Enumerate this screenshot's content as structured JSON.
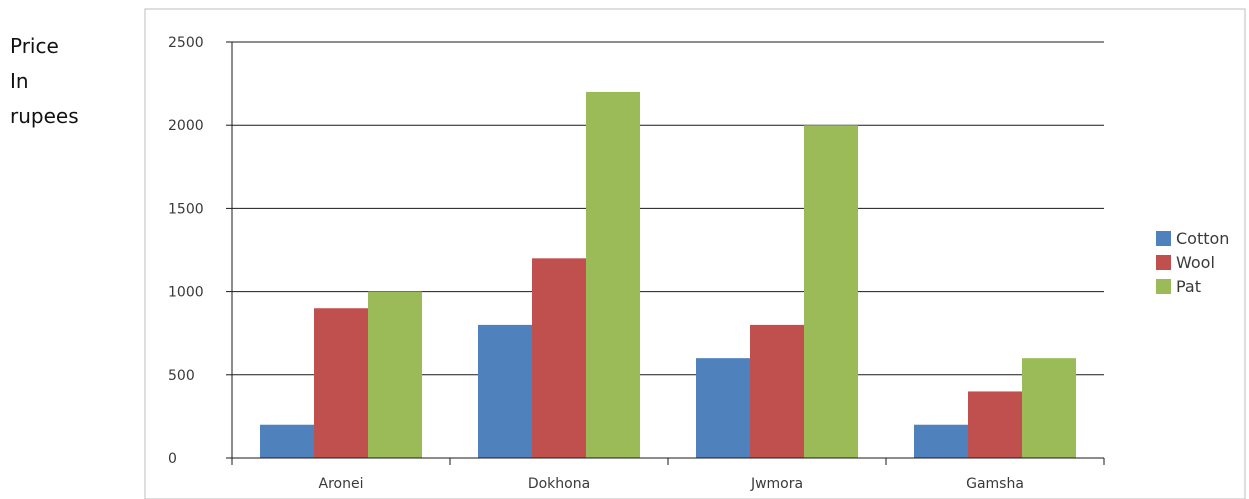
{
  "y_axis_label": {
    "line1": "Price",
    "line2": "In",
    "line3": "rupees"
  },
  "chart_data": {
    "type": "bar",
    "title": "",
    "xlabel": "",
    "ylabel": "Price In rupees",
    "categories": [
      "Aronei",
      "Dokhona",
      "Jwmora",
      "Gamsha"
    ],
    "series": [
      {
        "name": "Cotton",
        "color": "#4f81bd",
        "values": [
          200,
          800,
          600,
          200
        ]
      },
      {
        "name": "Wool",
        "color": "#c0504d",
        "values": [
          900,
          1200,
          800,
          400
        ]
      },
      {
        "name": "Pat",
        "color": "#9bbb59",
        "values": [
          1000,
          2200,
          2000,
          600
        ]
      }
    ],
    "ylim": [
      0,
      2500
    ],
    "yticks": [
      0,
      500,
      1000,
      1500,
      2000,
      2500
    ],
    "grid": true,
    "legend_position": "right"
  }
}
